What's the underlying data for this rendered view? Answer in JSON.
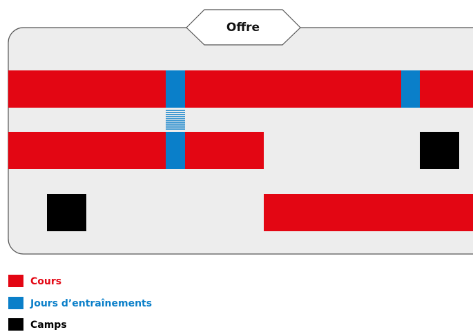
{
  "title": "Offre",
  "legend": [
    "Cours",
    "Jours d’entraînements",
    "Camps"
  ]
}
